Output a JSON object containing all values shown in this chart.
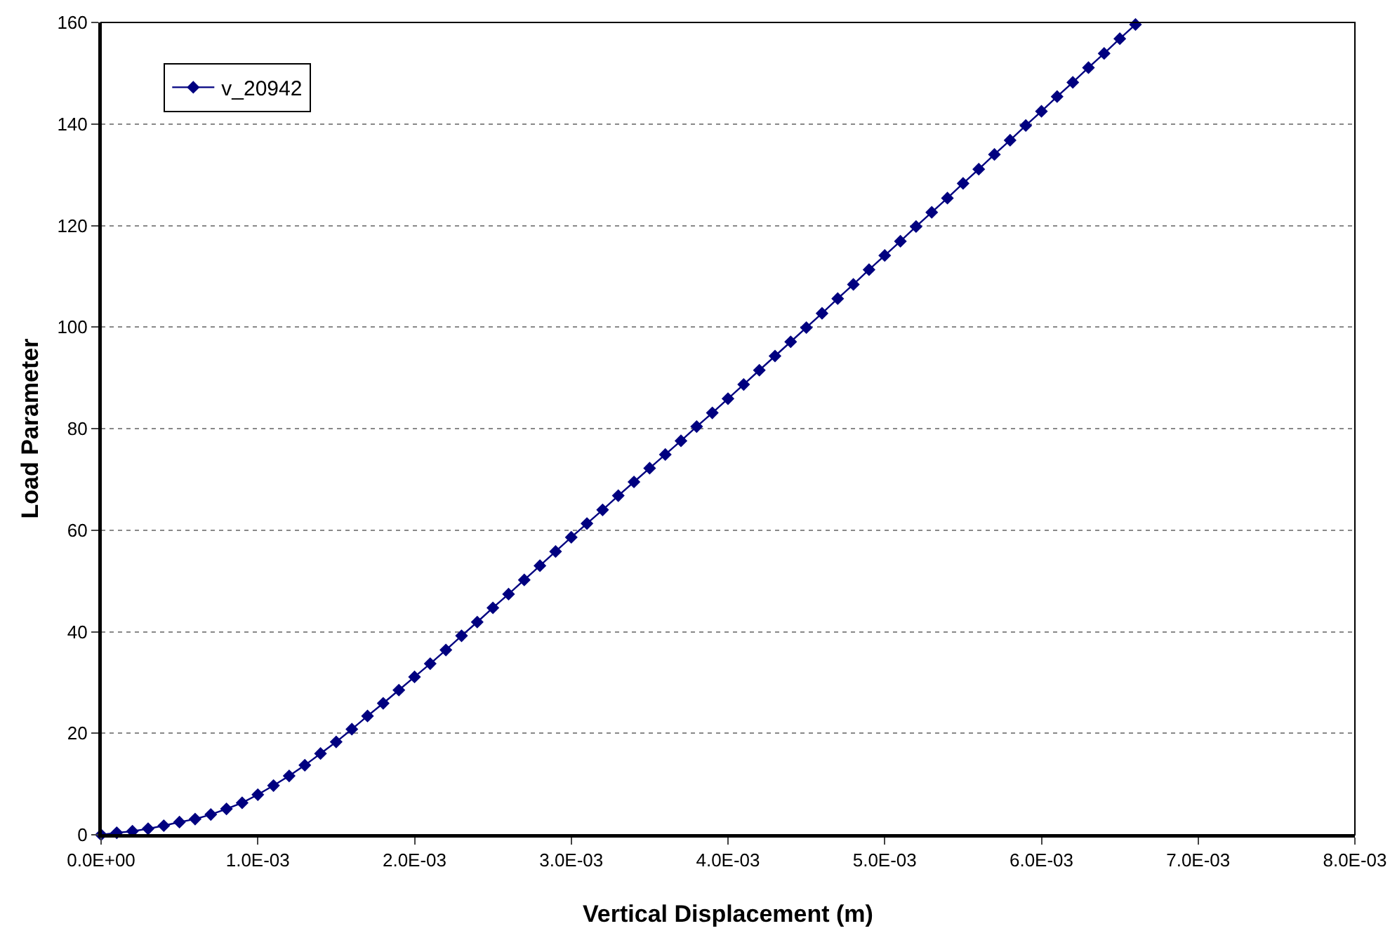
{
  "chart_data": {
    "type": "line",
    "xlabel": "Vertical Displacement (m)",
    "ylabel": "Load Parameter",
    "x": [
      0,
      0.0001,
      0.0002,
      0.0003,
      0.0004,
      0.0005,
      0.0006,
      0.0007,
      0.0008,
      0.0009,
      0.001,
      0.0011,
      0.0012,
      0.0013,
      0.0014,
      0.0015,
      0.0016,
      0.0017,
      0.0018,
      0.0019,
      0.002,
      0.0021,
      0.0022,
      0.0023,
      0.0024,
      0.0025,
      0.0026,
      0.0027,
      0.0028,
      0.0029,
      0.003,
      0.0031,
      0.0032,
      0.0033,
      0.0034,
      0.0035,
      0.0036,
      0.0037,
      0.0038,
      0.0039,
      0.004,
      0.0041,
      0.0042,
      0.0043,
      0.0044,
      0.0045,
      0.0046,
      0.0047,
      0.0048,
      0.0049,
      0.005,
      0.0051,
      0.0052,
      0.0053,
      0.0054,
      0.0055,
      0.0056,
      0.0057,
      0.0058,
      0.0059,
      0.006,
      0.0061,
      0.0062,
      0.0063,
      0.0064,
      0.0065,
      0.0066
    ],
    "series": [
      {
        "name": "v_20942",
        "color": "#000080",
        "values": [
          0,
          0.4,
          0.7,
          1.2,
          1.8,
          2.5,
          3.1,
          4.0,
          5.1,
          6.3,
          7.9,
          9.7,
          11.6,
          13.7,
          16.0,
          18.3,
          20.8,
          23.4,
          25.9,
          28.5,
          31.1,
          33.7,
          36.4,
          39.2,
          41.9,
          44.7,
          47.4,
          50.2,
          53.0,
          55.8,
          58.6,
          61.3,
          64.0,
          66.8,
          69.5,
          72.2,
          74.9,
          77.6,
          80.4,
          83.1,
          85.9,
          88.7,
          91.5,
          94.3,
          97.1,
          99.9,
          102.7,
          105.6,
          108.4,
          111.3,
          114.1,
          116.9,
          119.8,
          122.6,
          125.4,
          128.3,
          131.1,
          134.0,
          136.8,
          139.7,
          142.5,
          145.4,
          148.2,
          151.1,
          153.9,
          156.8,
          159.6
        ]
      }
    ],
    "xlim": [
      0,
      0.008
    ],
    "xticks": [
      {
        "value": 0,
        "label": "0.0E+00"
      },
      {
        "value": 0.001,
        "label": "1.0E-03"
      },
      {
        "value": 0.002,
        "label": "2.0E-03"
      },
      {
        "value": 0.003,
        "label": "3.0E-03"
      },
      {
        "value": 0.004,
        "label": "4.0E-03"
      },
      {
        "value": 0.005,
        "label": "5.0E-03"
      },
      {
        "value": 0.006,
        "label": "6.0E-03"
      },
      {
        "value": 0.007,
        "label": "7.0E-03"
      },
      {
        "value": 0.008,
        "label": "8.0E-03"
      }
    ],
    "ylim": [
      0,
      160
    ],
    "yticks": [
      0,
      20,
      40,
      60,
      80,
      100,
      120,
      140,
      160
    ],
    "grid": "y",
    "legend": "top left",
    "marker": "diamond",
    "line_style": "solid"
  }
}
